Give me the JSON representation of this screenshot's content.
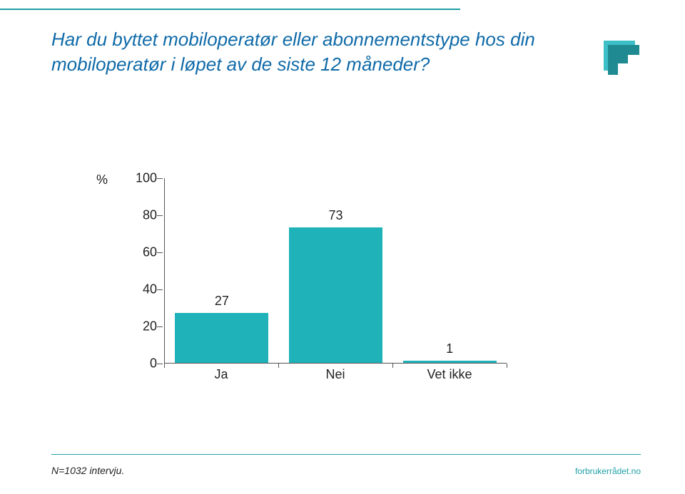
{
  "title": "Har du byttet mobiloperatør eller abonnementstype hos din mobiloperatør i løpet av de siste 12 måneder?",
  "chart": {
    "type": "bar",
    "y_symbol": "%",
    "ylim": [
      0,
      100
    ],
    "yticks": [
      0,
      20,
      40,
      60,
      80,
      100
    ],
    "categories": [
      "Ja",
      "Nei",
      "Vet ikke"
    ],
    "values": [
      27,
      73,
      1
    ],
    "bar_color": "#1fb2b8",
    "axis_color": "#555555",
    "label_fontsize": 18,
    "title_fontsize": 26,
    "title_color": "#0f6aa8",
    "background_color": "#ffffff"
  },
  "footnote": "N=1032 intervju.",
  "brand": "forbrukerrådet.no",
  "accent_color": "#1fa0a7",
  "logo_stroke": "#28818a",
  "logo_fill_light": "#3cbfc6",
  "logo_fill_dark": "#1f8a91"
}
